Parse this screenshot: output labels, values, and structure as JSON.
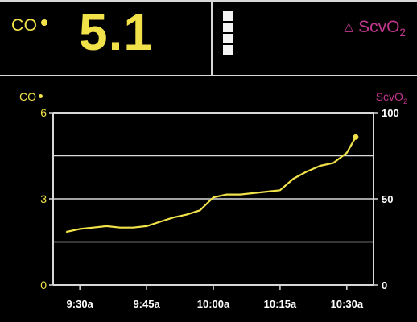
{
  "header": {
    "co_label": "CO",
    "co_value": "5.1",
    "scvo2_label": "ScvO",
    "scvo2_sub": "2",
    "delta_symbol": "△",
    "indicator_segments": 4
  },
  "chart": {
    "left_axis_label": "CO",
    "right_axis_label": "ScvO",
    "right_axis_sub": "2"
  },
  "colors": {
    "co": "#f2e24a",
    "scvo2": "#c0378d",
    "grid": "#d8d8d8"
  },
  "chart_data": {
    "type": "line",
    "title": "",
    "xlabel": "",
    "ylabel": "CO",
    "ylabel_right": "ScvO2",
    "ylim": [
      0,
      6
    ],
    "ylim_right": [
      0,
      100
    ],
    "left_ticks": [
      "0",
      "3",
      "6"
    ],
    "right_ticks": [
      "0",
      "50",
      "100"
    ],
    "x_ticks": [
      "9:30a",
      "9:45a",
      "10:00a",
      "10:15a",
      "10:30a"
    ],
    "grid": true,
    "series": [
      {
        "axis": "left",
        "x": [
          "9:27a",
          "9:30a",
          "9:33a",
          "9:36a",
          "9:39a",
          "9:42a",
          "9:45a",
          "9:48a",
          "9:51a",
          "9:54a",
          "9:57a",
          "10:00a",
          "10:03a",
          "10:06a",
          "10:09a",
          "10:12a",
          "10:15a",
          "10:18a",
          "10:21a",
          "10:24a",
          "10:27a",
          "10:30a",
          "10:32a"
        ],
        "y": [
          1.85,
          1.95,
          2.0,
          2.05,
          2.0,
          2.0,
          2.05,
          2.2,
          2.35,
          2.45,
          2.6,
          3.05,
          3.15,
          3.15,
          3.2,
          3.25,
          3.3,
          3.7,
          3.95,
          4.15,
          4.25,
          4.6,
          5.15
        ]
      }
    ]
  }
}
